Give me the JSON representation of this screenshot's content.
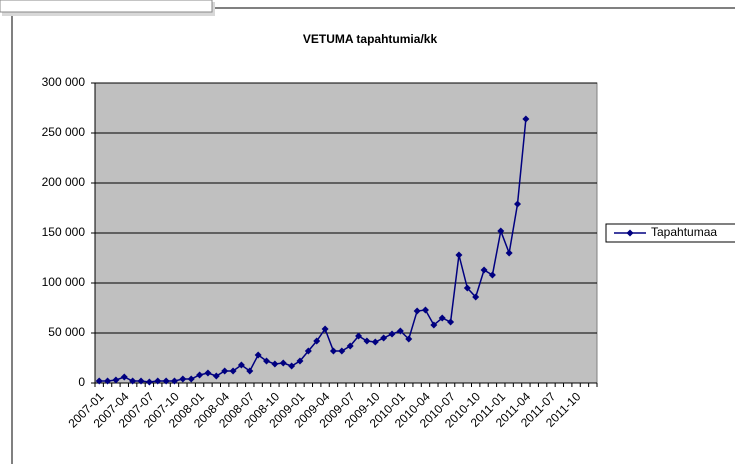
{
  "chart_data": {
    "type": "line",
    "title": "VETUMA tapahtumia/kk",
    "categories": [
      "2007-01",
      null,
      null,
      "2007-04",
      null,
      null,
      "2007-07",
      null,
      null,
      "2007-10",
      null,
      null,
      "2008-01",
      null,
      null,
      "2008-04",
      null,
      null,
      "2008-07",
      null,
      null,
      "2008-10",
      null,
      null,
      "2009-01",
      null,
      null,
      "2009-04",
      null,
      null,
      "2009-07",
      null,
      null,
      "2009-10",
      null,
      null,
      "2010-01",
      null,
      null,
      "2010-04",
      null,
      null,
      "2010-07",
      null,
      null,
      "2010-10",
      null,
      null,
      "2011-01",
      null,
      null,
      "2011-04",
      null,
      null,
      "2011-07",
      null,
      null,
      "2011-10",
      null,
      null
    ],
    "series": [
      {
        "name": "Tapahtumaa",
        "color": "#000080",
        "values": [
          2000,
          2000,
          3000,
          6000,
          2000,
          2000,
          1000,
          2000,
          2000,
          2000,
          4000,
          4000,
          8000,
          10000,
          7000,
          12000,
          12000,
          18000,
          12000,
          28000,
          22000,
          19000,
          20000,
          17000,
          22000,
          32000,
          42000,
          54000,
          32000,
          32000,
          37000,
          47000,
          42000,
          41000,
          45000,
          49000,
          52000,
          44000,
          72000,
          73000,
          58000,
          65000,
          61000,
          128000,
          95000,
          86000,
          113000,
          108000,
          152000,
          130000,
          179000,
          264000,
          null,
          null,
          null,
          null,
          null,
          null,
          null,
          null
        ]
      }
    ],
    "ylim": [
      0,
      300000
    ],
    "yticks": [
      {
        "value": 0,
        "label": "0"
      },
      {
        "value": 50000,
        "label": "50 000"
      },
      {
        "value": 100000,
        "label": "100 000"
      },
      {
        "value": 150000,
        "label": "150 000"
      },
      {
        "value": 200000,
        "label": "200 000"
      },
      {
        "value": 250000,
        "label": "250 000"
      },
      {
        "value": 300000,
        "label": "300 000"
      }
    ],
    "grid": true,
    "plot_background": "#c0c0c0",
    "legend": "right"
  }
}
